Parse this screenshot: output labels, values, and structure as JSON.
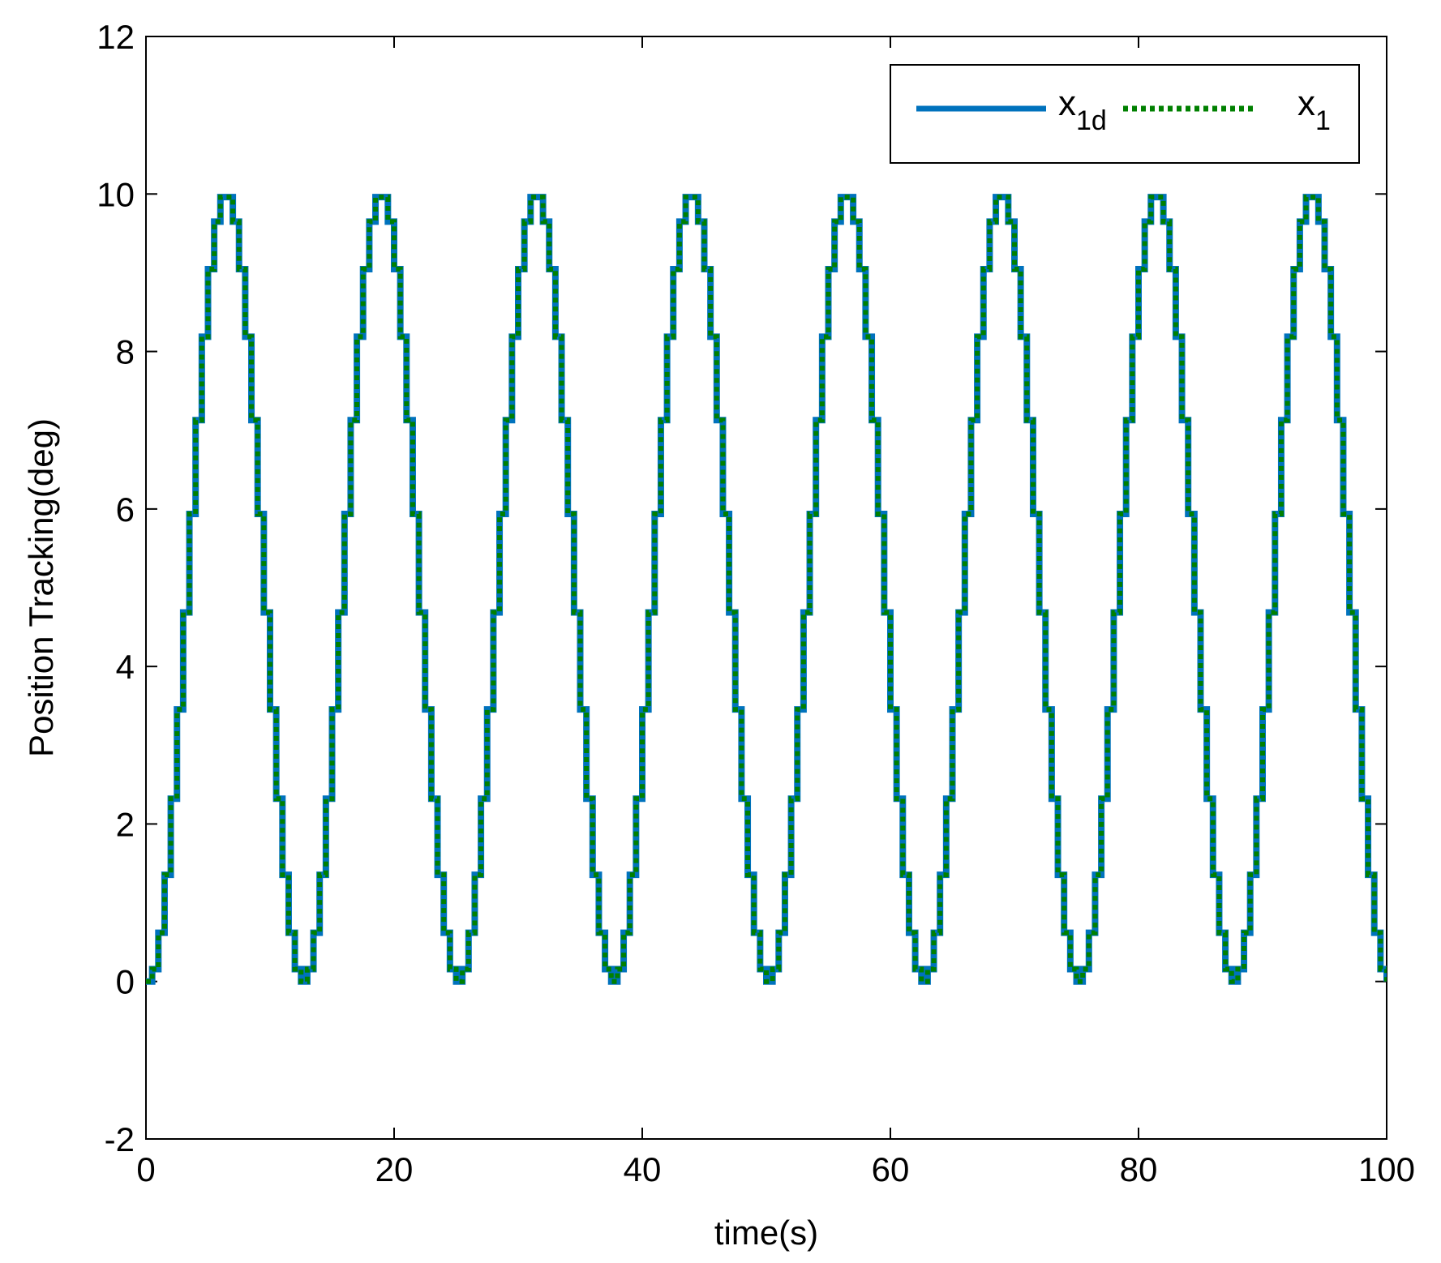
{
  "chart_data": {
    "type": "line",
    "xlabel": "time(s)",
    "ylabel": "Position Tracking(deg)",
    "xlim": [
      0,
      100
    ],
    "ylim": [
      -2,
      12
    ],
    "xticks": [
      0,
      20,
      40,
      60,
      80,
      100
    ],
    "yticks": [
      -2,
      0,
      2,
      4,
      6,
      8,
      10,
      12
    ],
    "grid": false,
    "legend_position": "top-right",
    "signal": {
      "form": "staircase sinusoid",
      "offset": 5,
      "amplitude": 5,
      "period_s": 12.5,
      "step_s": 0.5,
      "start_value": 0,
      "peaks": [
        [
          6.25,
          10
        ],
        [
          18.75,
          10
        ],
        [
          31.25,
          10
        ],
        [
          43.75,
          10
        ],
        [
          56.25,
          10
        ],
        [
          68.75,
          10
        ],
        [
          81.25,
          10
        ],
        [
          93.75,
          10
        ]
      ],
      "troughs": [
        [
          0,
          0
        ],
        [
          12.5,
          0
        ],
        [
          25,
          0
        ],
        [
          37.5,
          0
        ],
        [
          50,
          0
        ],
        [
          62.5,
          0
        ],
        [
          75,
          0
        ],
        [
          87.5,
          0
        ],
        [
          100,
          0.1
        ]
      ]
    },
    "series": [
      {
        "name": "x",
        "subscript": "1d",
        "color": "#0072BD",
        "style": "solid"
      },
      {
        "name": "x",
        "subscript": "1",
        "color": "#008000",
        "style": "dotted"
      }
    ]
  }
}
